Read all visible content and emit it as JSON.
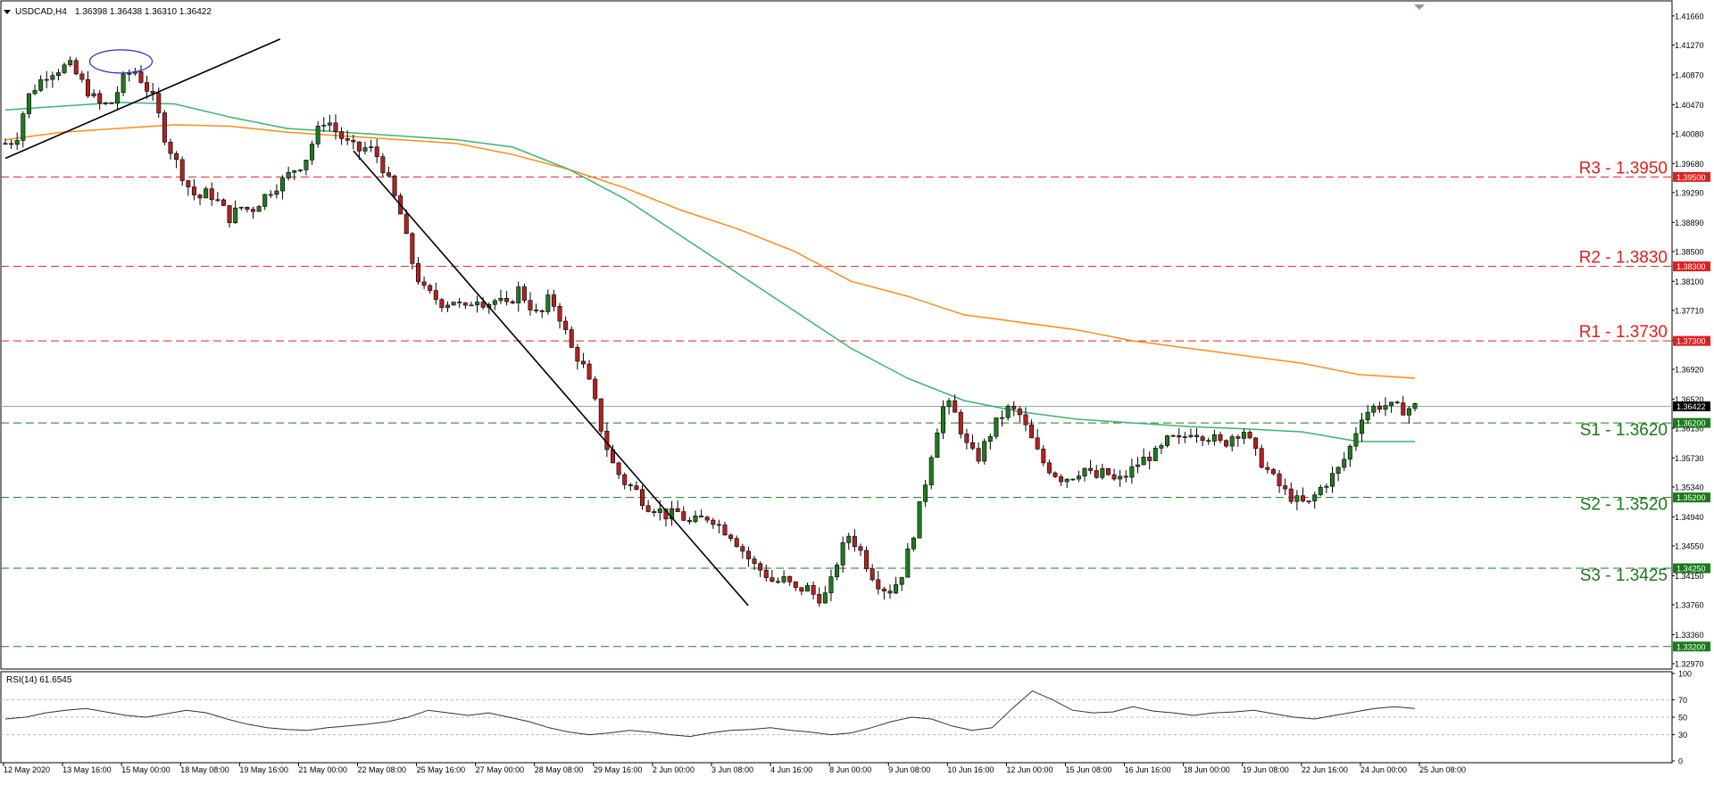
{
  "header": {
    "symbol_tf": "USDCAD,H4",
    "ohlc": "1.36398 1.36438 1.36310 1.36422"
  },
  "rsi_header": "RSI(14) 61.6545",
  "colors": {
    "bull": "#1f7a1f",
    "bear": "#b22222",
    "resistance": "#e02020",
    "support": "#1a7a1a",
    "ma_fast": "#3cb371",
    "ma_slow": "#ff8c1a",
    "trendline": "#000000",
    "current_price_tag": "#000000",
    "rsi_line": "#333333"
  },
  "chart_data": {
    "type": "candlestick",
    "symbol": "USDCAD",
    "timeframe": "H4",
    "ylim": [
      1.3291,
      1.4185
    ],
    "yticks": [
      "1.41660",
      "1.41270",
      "1.40870",
      "1.40470",
      "1.40080",
      "1.39680",
      "1.39290",
      "1.38890",
      "1.38500",
      "1.38100",
      "1.37710",
      "1.37310",
      "1.36920",
      "1.36520",
      "1.36130",
      "1.35730",
      "1.35340",
      "1.34940",
      "1.34550",
      "1.34150",
      "1.33760",
      "1.33360",
      "1.32970"
    ],
    "xticks": [
      "12 May 2020",
      "13 May 16:00",
      "15 May 00:00",
      "18 May 08:00",
      "19 May 16:00",
      "21 May 00:00",
      "22 May 08:00",
      "25 May 16:00",
      "27 May 00:00",
      "28 May 08:00",
      "29 May 16:00",
      "2 Jun 00:00",
      "3 Jun 08:00",
      "4 Jun 16:00",
      "8 Jun 00:00",
      "9 Jun 08:00",
      "10 Jun 16:00",
      "12 Jun 00:00",
      "15 Jun 08:00",
      "16 Jun 16:00",
      "18 Jun 00:00",
      "19 Jun 08:00",
      "22 Jun 16:00",
      "24 Jun 00:00",
      "25 Jun 08:00"
    ],
    "levels": [
      {
        "label": "R3 - 1.3950",
        "tag": "1.39500",
        "value": 1.395,
        "kind": "resistance"
      },
      {
        "label": "R2 - 1.3830",
        "tag": "1.38300",
        "value": 1.383,
        "kind": "resistance"
      },
      {
        "label": "R1 - 1.3730",
        "tag": "1.37300",
        "value": 1.373,
        "kind": "resistance"
      },
      {
        "label": "S1 - 1.3620",
        "tag": "1.36200",
        "value": 1.362,
        "kind": "support"
      },
      {
        "label": "S2 - 1.3520",
        "tag": "1.35200",
        "value": 1.352,
        "kind": "support"
      },
      {
        "label": "S3 - 1.3425",
        "tag": "1.34250",
        "value": 1.3425,
        "kind": "support"
      },
      {
        "label": "",
        "tag": "1.33200",
        "value": 1.332,
        "kind": "support"
      }
    ],
    "current_price": {
      "value": 1.36422,
      "tag": "1.36422"
    },
    "close_path": [
      1.3995,
      1.4,
      1.4055,
      1.4075,
      1.409,
      1.4095,
      1.41,
      1.408,
      1.406,
      1.4045,
      1.405,
      1.408,
      1.4095,
      1.4075,
      1.405,
      1.4,
      1.397,
      1.394,
      1.392,
      1.393,
      1.3915,
      1.3895,
      1.391,
      1.3905,
      1.392,
      1.3935,
      1.3945,
      1.396,
      1.397,
      1.4005,
      1.403,
      1.401,
      1.3995,
      1.3985,
      1.399,
      1.3975,
      1.394,
      1.39,
      1.384,
      1.38,
      1.379,
      1.378,
      1.3785,
      1.377,
      1.379,
      1.378,
      1.3785,
      1.3775,
      1.38,
      1.378,
      1.376,
      1.379,
      1.376,
      1.372,
      1.37,
      1.366,
      1.36,
      1.356,
      1.354,
      1.353,
      1.351,
      1.3505,
      1.3495,
      1.35,
      1.3485,
      1.349,
      1.3495,
      1.348,
      1.347,
      1.345,
      1.343,
      1.342,
      1.3405,
      1.341,
      1.3395,
      1.34,
      1.3385,
      1.339,
      1.344,
      1.347,
      1.345,
      1.342,
      1.34,
      1.3395,
      1.342,
      1.347,
      1.353,
      1.36,
      1.365,
      1.363,
      1.359,
      1.357,
      1.36,
      1.3625,
      1.364,
      1.363,
      1.36,
      1.357,
      1.3555,
      1.3545,
      1.355,
      1.356,
      1.3545,
      1.3555,
      1.354,
      1.355,
      1.3565,
      1.3575,
      1.358,
      1.36,
      1.3595,
      1.361,
      1.3605,
      1.36,
      1.359,
      1.3605,
      1.361,
      1.358,
      1.356,
      1.354,
      1.3525,
      1.3515,
      1.351,
      1.353,
      1.3545,
      1.356,
      1.359,
      1.363,
      1.364,
      1.3645,
      1.364,
      1.3638,
      1.3642
    ],
    "ma_fast_path": [
      1.404,
      1.4045,
      1.405,
      1.4048,
      1.403,
      1.4015,
      1.401,
      1.4005,
      1.4,
      1.399,
      1.396,
      1.392,
      1.387,
      1.382,
      1.377,
      1.372,
      1.368,
      1.365,
      1.3635,
      1.3625,
      1.362,
      1.3615,
      1.3612,
      1.3608,
      1.3595,
      1.3595
    ],
    "ma_slow_path": [
      1.4,
      1.401,
      1.4015,
      1.402,
      1.4018,
      1.401,
      1.4005,
      1.4,
      1.3995,
      1.398,
      1.396,
      1.3935,
      1.3905,
      1.388,
      1.385,
      1.381,
      1.379,
      1.3765,
      1.3755,
      1.3745,
      1.373,
      1.372,
      1.371,
      1.37,
      1.3685,
      1.368
    ],
    "trendlines": [
      {
        "from": [
          0.0,
          1.3975
        ],
        "to": [
          0.195,
          1.4135
        ]
      },
      {
        "from": [
          0.247,
          1.3985
        ],
        "to": [
          0.527,
          1.3375
        ]
      }
    ],
    "ellipse": {
      "center": [
        0.082,
        1.4105
      ]
    },
    "rsi": {
      "label": "RSI(14)",
      "last": 61.6545,
      "levels": [
        70,
        50,
        30
      ],
      "yticks": [
        "100",
        "70",
        "50",
        "30",
        "0"
      ],
      "ylim": [
        0,
        100
      ],
      "path": [
        48,
        50,
        55,
        58,
        60,
        56,
        52,
        50,
        54,
        58,
        55,
        48,
        42,
        38,
        36,
        35,
        38,
        40,
        42,
        45,
        50,
        58,
        55,
        52,
        55,
        50,
        45,
        38,
        33,
        30,
        32,
        35,
        33,
        30,
        28,
        32,
        35,
        36,
        38,
        35,
        33,
        30,
        32,
        38,
        45,
        50,
        48,
        40,
        35,
        38,
        60,
        80,
        70,
        58,
        55,
        56,
        62,
        57,
        55,
        52,
        55,
        56,
        58,
        54,
        50,
        48,
        52,
        56,
        60,
        62,
        60
      ]
    }
  }
}
